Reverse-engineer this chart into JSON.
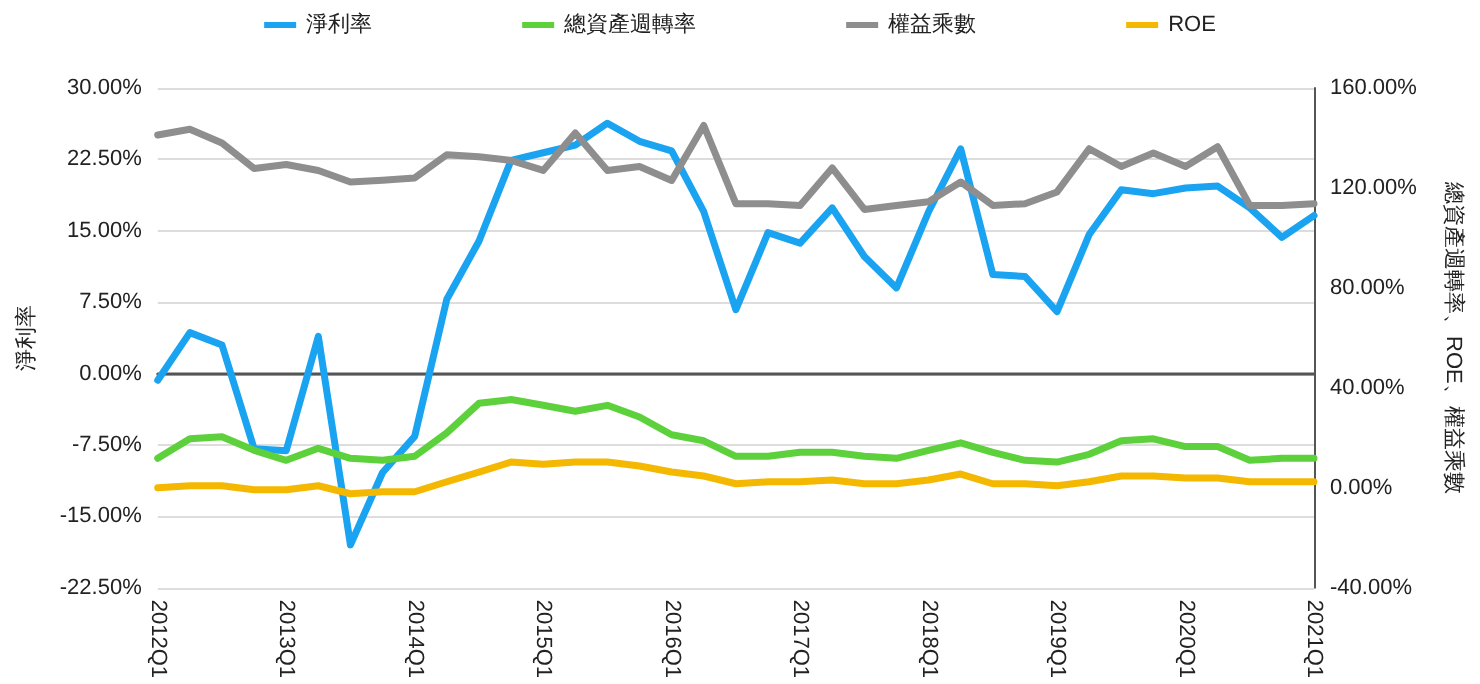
{
  "chart_data": {
    "type": "line",
    "ylabel": "淨利率",
    "y2label": "總資產週轉率、ROE、權益乘數",
    "categories": [
      "2012Q1",
      null,
      null,
      null,
      "2013Q1",
      null,
      null,
      null,
      "2014Q1",
      null,
      null,
      null,
      "2015Q1",
      null,
      null,
      null,
      "2016Q1",
      null,
      null,
      null,
      "2017Q1",
      null,
      null,
      null,
      "2018Q1",
      null,
      null,
      null,
      "2019Q1",
      null,
      null,
      null,
      "2020Q1",
      null,
      null,
      null,
      "2021Q1"
    ],
    "series": [
      {
        "name": "淨利率",
        "color": "#1aa3f0",
        "values": [
          -0.7,
          4.3,
          3.0,
          -7.9,
          -8.1,
          3.9,
          -18,
          -10.4,
          -6.6,
          7.8,
          13.9,
          22.4,
          23.2,
          24.0,
          26.3,
          24.4,
          23.4,
          17.0,
          6.7,
          14.8,
          13.7,
          17.4,
          12.3,
          9.0,
          17.0,
          23.6,
          10.4,
          10.2,
          6.5,
          14.6,
          19.3,
          18.9,
          19.5,
          19.7,
          17.4,
          14.3,
          16.6
        ]
      },
      {
        "name": "總資產週轉率",
        "color": "#5cd13c",
        "axis": "y2",
        "values": [
          11.8,
          19.6,
          20.4,
          15,
          11,
          15.8,
          11.8,
          11,
          12.6,
          22,
          33.8,
          35.3,
          33,
          30.6,
          33,
          28.3,
          21.2,
          18.8,
          12.6,
          12.6,
          14.2,
          14.2,
          12.6,
          11.8,
          15,
          18,
          14.2,
          11,
          10.3,
          13.4,
          18.8,
          19.6,
          16.5,
          16.5,
          11,
          11.8,
          11.8
        ]
      },
      {
        "name": "權益乘數",
        "color": "#8e8e8e",
        "axis": "y2",
        "values": [
          141.2,
          143.5,
          138,
          127.8,
          129.4,
          127,
          122.4,
          123.1,
          124,
          133.3,
          132.5,
          131,
          127,
          142,
          127,
          128.6,
          123,
          145,
          113.7,
          113.7,
          113,
          128,
          111.4,
          113,
          114.5,
          122.4,
          113,
          113.7,
          118.4,
          135.7,
          128.6,
          134,
          128.6,
          136.5,
          113,
          113,
          113.7
        ]
      },
      {
        "name": "ROE",
        "color": "#f5b800",
        "axis": "y2",
        "values": [
          0,
          0.8,
          0.8,
          -0.8,
          -0.8,
          0.8,
          -2.4,
          -1.6,
          -1.6,
          2.4,
          6.3,
          10.3,
          9.4,
          10.3,
          10.3,
          8.7,
          6.3,
          4.7,
          1.6,
          2.4,
          2.4,
          3.1,
          1.6,
          1.6,
          3.1,
          5.5,
          1.6,
          1.6,
          0.8,
          2.4,
          4.7,
          4.7,
          3.9,
          3.9,
          2.4,
          2.4,
          2.4
        ]
      }
    ],
    "ylim": [
      -22.5,
      30
    ],
    "yticks": [
      {
        "value": -22.5,
        "label": "-22.50%"
      },
      {
        "value": -15,
        "label": "-15.00%"
      },
      {
        "value": -7.5,
        "label": "-7.50%"
      },
      {
        "value": 0,
        "label": "0.00%"
      },
      {
        "value": 7.5,
        "label": "7.50%"
      },
      {
        "value": 15,
        "label": "15.00%"
      },
      {
        "value": 22.5,
        "label": "22.50%"
      },
      {
        "value": 30,
        "label": "30.00%"
      }
    ],
    "y2lim": [
      -40,
      160
    ],
    "y2ticks": [
      {
        "value": -40,
        "label": "-40.00%"
      },
      {
        "value": 0,
        "label": "0.00%"
      },
      {
        "value": 40,
        "label": "40.00%"
      },
      {
        "value": 80,
        "label": "80.00%"
      },
      {
        "value": 120,
        "label": "120.00%"
      },
      {
        "value": 160,
        "label": "160.00%"
      }
    ],
    "grid": "y",
    "legend": "top",
    "marker": "none",
    "line_style": "solid"
  }
}
